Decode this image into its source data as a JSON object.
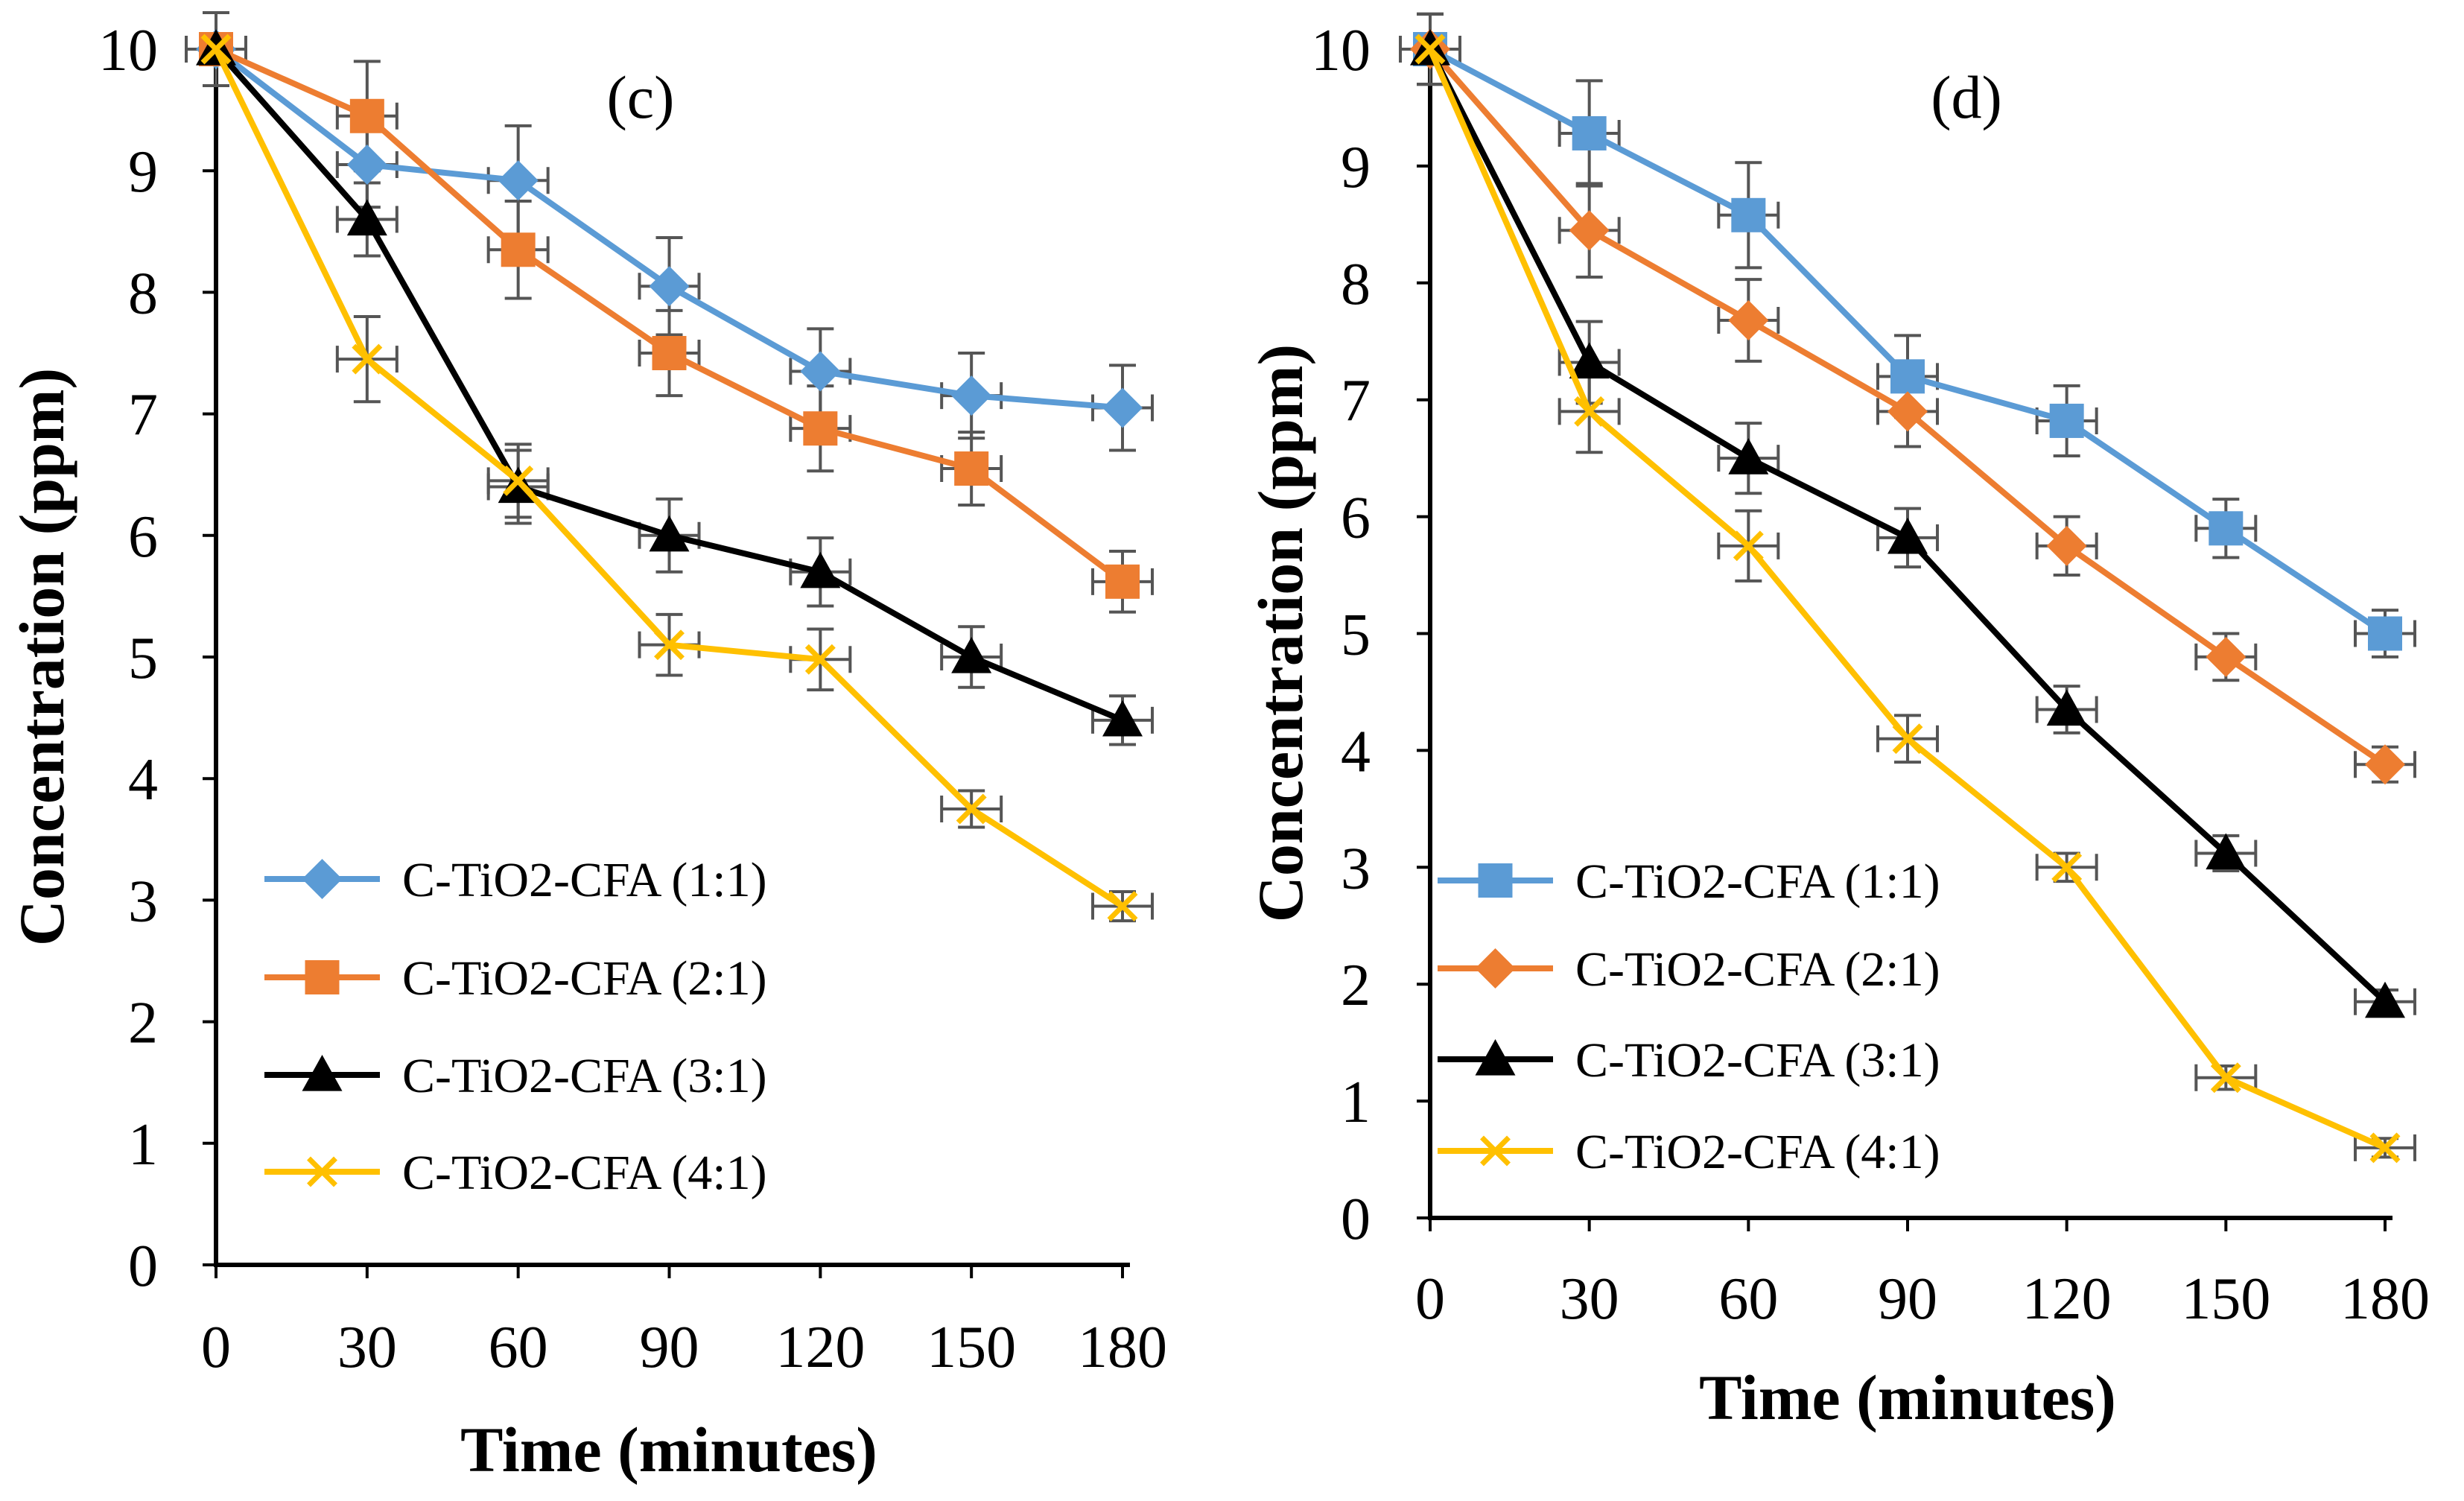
{
  "chart_data": [
    {
      "type": "line",
      "panel_label": "(c)",
      "xlabel": "Time (minutes)",
      "ylabel": "Concentration (ppm)",
      "x": [
        0,
        30,
        60,
        90,
        120,
        150,
        180
      ],
      "x_ticks": [
        "0",
        "30",
        "60",
        "90",
        "120",
        "150",
        "180"
      ],
      "y_ticks": [
        "0",
        "1",
        "2",
        "3",
        "4",
        "5",
        "6",
        "7",
        "8",
        "9",
        "10"
      ],
      "xlim": [
        0,
        180
      ],
      "ylim": [
        0,
        10
      ],
      "legend_position": "bottom-left",
      "series": [
        {
          "name": "C-TiO2-CFA (1:1)",
          "color": "#5b9bd5",
          "marker": "diamond",
          "values": [
            10,
            9.05,
            8.92,
            8.05,
            7.35,
            7.15,
            7.05
          ],
          "error": [
            0.3,
            0.35,
            0.45,
            0.4,
            0.35,
            0.35,
            0.35
          ]
        },
        {
          "name": "C-TiO2-CFA (2:1)",
          "color": "#ed7d31",
          "marker": "square",
          "values": [
            10,
            9.45,
            8.35,
            7.5,
            6.88,
            6.55,
            5.62
          ],
          "error": [
            0.3,
            0.45,
            0.4,
            0.35,
            0.35,
            0.3,
            0.25
          ]
        },
        {
          "name": "C-TiO2-CFA (3:1)",
          "color": "#000000",
          "marker": "triangle",
          "values": [
            10,
            8.6,
            6.4,
            6.0,
            5.7,
            5.0,
            4.48
          ],
          "error": [
            0.3,
            0.3,
            0.3,
            0.3,
            0.28,
            0.25,
            0.2
          ]
        },
        {
          "name": "C-TiO2-CFA (4:1)",
          "color": "#ffc000",
          "marker": "x",
          "values": [
            10,
            7.45,
            6.45,
            5.1,
            4.98,
            3.75,
            2.95
          ],
          "error": [
            0.3,
            0.35,
            0.3,
            0.25,
            0.25,
            0.15,
            0.12
          ]
        }
      ]
    },
    {
      "type": "line",
      "panel_label": "(d)",
      "xlabel": "Time (minutes)",
      "ylabel": "Concentration (ppm)",
      "x": [
        0,
        30,
        60,
        90,
        120,
        150,
        180
      ],
      "x_ticks": [
        "0",
        "30",
        "60",
        "90",
        "120",
        "150",
        "180"
      ],
      "y_ticks": [
        "0",
        "1",
        "2",
        "3",
        "4",
        "5",
        "6",
        "7",
        "8",
        "9",
        "10"
      ],
      "xlim": [
        0,
        180
      ],
      "ylim": [
        0,
        10
      ],
      "legend_position": "bottom-left",
      "series": [
        {
          "name": "C-TiO2-CFA (1:1)",
          "color": "#5b9bd5",
          "marker": "square",
          "values": [
            10,
            9.28,
            8.58,
            7.2,
            6.82,
            5.9,
            5.0
          ],
          "error": [
            0.3,
            0.45,
            0.45,
            0.35,
            0.3,
            0.25,
            0.2
          ]
        },
        {
          "name": "C-TiO2-CFA (2:1)",
          "color": "#ed7d31",
          "marker": "diamond",
          "values": [
            10,
            8.45,
            7.68,
            6.9,
            5.75,
            4.8,
            3.88
          ],
          "error": [
            0.3,
            0.4,
            0.35,
            0.3,
            0.25,
            0.2,
            0.15
          ]
        },
        {
          "name": "C-TiO2-CFA (3:1)",
          "color": "#000000",
          "marker": "triangle",
          "values": [
            10,
            7.32,
            6.5,
            5.82,
            4.35,
            3.12,
            1.85
          ],
          "error": [
            0.3,
            0.35,
            0.3,
            0.25,
            0.2,
            0.15,
            0.1
          ]
        },
        {
          "name": "C-TiO2-CFA (4:1)",
          "color": "#ffc000",
          "marker": "x",
          "values": [
            10,
            6.9,
            5.75,
            4.1,
            3.0,
            1.2,
            0.6
          ],
          "error": [
            0.3,
            0.35,
            0.3,
            0.2,
            0.12,
            0.1,
            0.08
          ]
        }
      ]
    }
  ]
}
